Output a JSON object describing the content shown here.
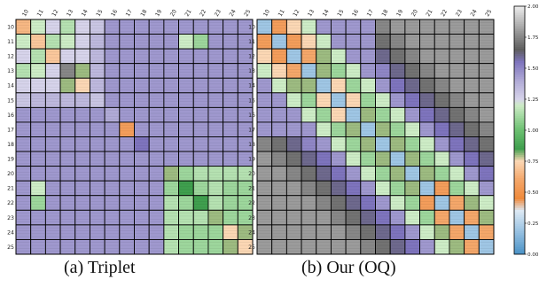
{
  "chart_data": [
    {
      "type": "heatmap",
      "caption": "(a) Triplet",
      "labels": [
        "10",
        "11",
        "12",
        "13",
        "14",
        "15",
        "16",
        "17",
        "18",
        "19",
        "20",
        "21",
        "22",
        "23",
        "24",
        "25"
      ],
      "colorbar": {
        "min": 0.0,
        "max": 2.0,
        "ticks": [
          "0.00",
          "0.25",
          "0.50",
          "0.75",
          "1.00",
          "1.25",
          "1.50",
          "1.75",
          "2.00"
        ]
      },
      "values": [
        [
          0.65,
          1.2,
          1.25,
          1.15,
          1.25,
          1.3,
          1.45,
          1.45,
          1.45,
          1.45,
          1.45,
          1.45,
          1.45,
          1.45,
          1.45,
          1.45
        ],
        [
          1.2,
          0.7,
          1.15,
          1.2,
          1.25,
          1.35,
          1.45,
          1.45,
          1.45,
          1.45,
          1.45,
          1.2,
          1.1,
          1.45,
          1.45,
          1.45
        ],
        [
          1.25,
          1.15,
          0.7,
          1.25,
          1.25,
          1.35,
          1.45,
          1.45,
          1.45,
          1.45,
          1.45,
          1.45,
          1.45,
          1.45,
          1.45,
          1.45
        ],
        [
          1.15,
          1.2,
          1.25,
          1.75,
          0.8,
          1.35,
          1.45,
          1.45,
          1.45,
          1.45,
          1.45,
          1.45,
          1.45,
          1.45,
          1.45,
          1.45
        ],
        [
          1.25,
          1.25,
          1.25,
          0.8,
          0.75,
          1.35,
          1.45,
          1.45,
          1.45,
          1.45,
          1.45,
          1.45,
          1.45,
          1.45,
          1.45,
          1.45
        ],
        [
          1.3,
          1.35,
          1.35,
          1.35,
          1.35,
          1.3,
          1.45,
          1.45,
          1.45,
          1.45,
          1.45,
          1.45,
          1.45,
          1.45,
          1.45,
          1.45
        ],
        [
          1.45,
          1.45,
          1.45,
          1.45,
          1.45,
          1.45,
          1.4,
          1.45,
          1.45,
          1.45,
          1.45,
          1.45,
          1.45,
          1.45,
          1.45,
          1.45
        ],
        [
          1.45,
          1.45,
          1.45,
          1.45,
          1.45,
          1.45,
          1.45,
          0.55,
          1.45,
          1.45,
          1.45,
          1.45,
          1.45,
          1.45,
          1.45,
          1.45
        ],
        [
          1.45,
          1.45,
          1.45,
          1.45,
          1.45,
          1.45,
          1.45,
          1.45,
          1.55,
          1.45,
          1.45,
          1.45,
          1.45,
          1.45,
          1.45,
          1.45
        ],
        [
          1.45,
          1.45,
          1.45,
          1.45,
          1.45,
          1.45,
          1.45,
          1.45,
          1.45,
          1.45,
          1.45,
          1.45,
          1.45,
          1.45,
          1.45,
          1.45
        ],
        [
          1.45,
          1.45,
          1.45,
          1.45,
          1.45,
          1.45,
          1.45,
          1.45,
          1.45,
          1.45,
          0.8,
          1.1,
          1.15,
          1.15,
          1.15,
          1.15
        ],
        [
          1.45,
          1.2,
          1.45,
          1.45,
          1.45,
          1.45,
          1.45,
          1.45,
          1.45,
          1.45,
          1.1,
          0.85,
          1.1,
          1.15,
          1.1,
          1.1
        ],
        [
          1.45,
          1.1,
          1.45,
          1.45,
          1.45,
          1.45,
          1.45,
          1.45,
          1.45,
          1.45,
          1.15,
          1.1,
          0.85,
          1.15,
          1.1,
          1.1
        ],
        [
          1.45,
          1.45,
          1.45,
          1.45,
          1.45,
          1.45,
          1.45,
          1.45,
          1.45,
          1.45,
          1.15,
          1.15,
          1.15,
          0.8,
          1.1,
          1.1
        ],
        [
          1.45,
          1.45,
          1.45,
          1.45,
          1.45,
          1.45,
          1.45,
          1.45,
          1.45,
          1.45,
          1.15,
          1.1,
          1.1,
          1.1,
          0.75,
          0.8
        ],
        [
          1.45,
          1.45,
          1.45,
          1.45,
          1.45,
          1.45,
          1.45,
          1.45,
          1.45,
          1.45,
          1.15,
          1.1,
          1.1,
          1.1,
          0.8,
          0.75
        ]
      ]
    },
    {
      "type": "heatmap",
      "caption": "(b) Our (OQ)",
      "labels": [
        "10",
        "11",
        "12",
        "13",
        "14",
        "15",
        "16",
        "17",
        "18",
        "19",
        "20",
        "21",
        "22",
        "23",
        "24",
        "25"
      ],
      "colorbar": {
        "min": 0.0,
        "max": 2.0,
        "ticks": [
          "0.00",
          "0.25",
          "0.50",
          "0.75",
          "1.00",
          "1.25",
          "1.50",
          "1.75",
          "2.00"
        ]
      },
      "values": [
        [
          0.2,
          0.55,
          0.75,
          1.2,
          1.45,
          1.45,
          1.45,
          1.45,
          1.75,
          1.8,
          1.8,
          1.8,
          1.8,
          1.8,
          1.8,
          1.8
        ],
        [
          0.55,
          0.2,
          0.55,
          0.75,
          1.2,
          1.45,
          1.45,
          1.45,
          1.7,
          1.75,
          1.8,
          1.8,
          1.8,
          1.8,
          1.8,
          1.8
        ],
        [
          0.75,
          0.55,
          0.2,
          0.6,
          0.8,
          1.2,
          1.45,
          1.45,
          1.6,
          1.7,
          1.75,
          1.8,
          1.8,
          1.8,
          1.8,
          1.8
        ],
        [
          1.2,
          0.75,
          0.6,
          0.2,
          0.8,
          1.1,
          1.2,
          1.45,
          1.5,
          1.6,
          1.7,
          1.75,
          1.8,
          1.8,
          1.8,
          1.8
        ],
        [
          1.45,
          1.2,
          0.8,
          0.8,
          0.2,
          0.75,
          1.1,
          1.2,
          1.45,
          1.55,
          1.6,
          1.7,
          1.75,
          1.8,
          1.8,
          1.8
        ],
        [
          1.45,
          1.45,
          1.2,
          1.1,
          0.75,
          0.2,
          0.75,
          1.1,
          1.2,
          1.45,
          1.55,
          1.6,
          1.7,
          1.75,
          1.8,
          1.8
        ],
        [
          1.45,
          1.45,
          1.45,
          1.2,
          1.1,
          0.75,
          0.2,
          0.8,
          1.1,
          1.2,
          1.45,
          1.55,
          1.6,
          1.7,
          1.75,
          1.8
        ],
        [
          1.45,
          1.45,
          1.45,
          1.45,
          1.2,
          1.1,
          0.8,
          0.2,
          0.8,
          1.1,
          1.2,
          1.45,
          1.55,
          1.6,
          1.7,
          1.75
        ],
        [
          1.75,
          1.7,
          1.6,
          1.5,
          1.45,
          1.2,
          1.1,
          0.8,
          0.2,
          0.8,
          1.1,
          1.2,
          1.45,
          1.55,
          1.6,
          1.7
        ],
        [
          1.8,
          1.75,
          1.7,
          1.6,
          1.55,
          1.45,
          1.2,
          1.1,
          0.8,
          0.2,
          0.8,
          1.1,
          1.2,
          1.45,
          1.55,
          1.6
        ],
        [
          1.8,
          1.8,
          1.75,
          1.7,
          1.6,
          1.55,
          1.45,
          1.2,
          1.1,
          0.8,
          0.2,
          0.8,
          1.1,
          1.2,
          1.45,
          1.55
        ],
        [
          1.8,
          1.8,
          1.8,
          1.75,
          1.7,
          1.6,
          1.55,
          1.45,
          1.2,
          1.1,
          0.8,
          0.2,
          0.55,
          1.1,
          1.2,
          1.45
        ],
        [
          1.8,
          1.8,
          1.8,
          1.8,
          1.75,
          1.7,
          1.6,
          1.55,
          1.45,
          1.2,
          1.1,
          0.55,
          0.2,
          0.6,
          0.8,
          1.2
        ],
        [
          1.8,
          1.8,
          1.8,
          1.8,
          1.8,
          1.75,
          1.7,
          1.6,
          1.55,
          1.45,
          1.2,
          1.1,
          0.6,
          0.2,
          0.6,
          0.8
        ],
        [
          1.8,
          1.8,
          1.8,
          1.8,
          1.8,
          1.8,
          1.75,
          1.7,
          1.6,
          1.55,
          1.45,
          1.2,
          0.8,
          0.6,
          0.2,
          0.6
        ],
        [
          1.8,
          1.8,
          1.8,
          1.8,
          1.8,
          1.8,
          1.8,
          1.75,
          1.7,
          1.6,
          1.55,
          1.45,
          1.2,
          0.8,
          0.6,
          0.2
        ]
      ]
    }
  ],
  "colormap": {
    "stops": [
      [
        0.0,
        "#4a92c7"
      ],
      [
        0.2,
        "#9fc6e4"
      ],
      [
        0.35,
        "#dde9f4"
      ],
      [
        0.45,
        "#f08a3c"
      ],
      [
        0.6,
        "#f4a76a"
      ],
      [
        0.75,
        "#fbd7b4"
      ],
      [
        0.85,
        "#3f9f4e"
      ],
      [
        1.0,
        "#6cc071"
      ],
      [
        1.2,
        "#cdecc6"
      ],
      [
        1.25,
        "#d6d3ea"
      ],
      [
        1.4,
        "#b0aad6"
      ],
      [
        1.55,
        "#7e74bd"
      ],
      [
        1.65,
        "#5e5e5e"
      ],
      [
        1.8,
        "#9b9b9b"
      ],
      [
        2.0,
        "#eeeeee"
      ]
    ],
    "cell_border": "#000000",
    "triplet_hatch": "#2e2a66"
  },
  "captions": {
    "a": "(a) Triplet",
    "b": "(b) Our (OQ)"
  }
}
